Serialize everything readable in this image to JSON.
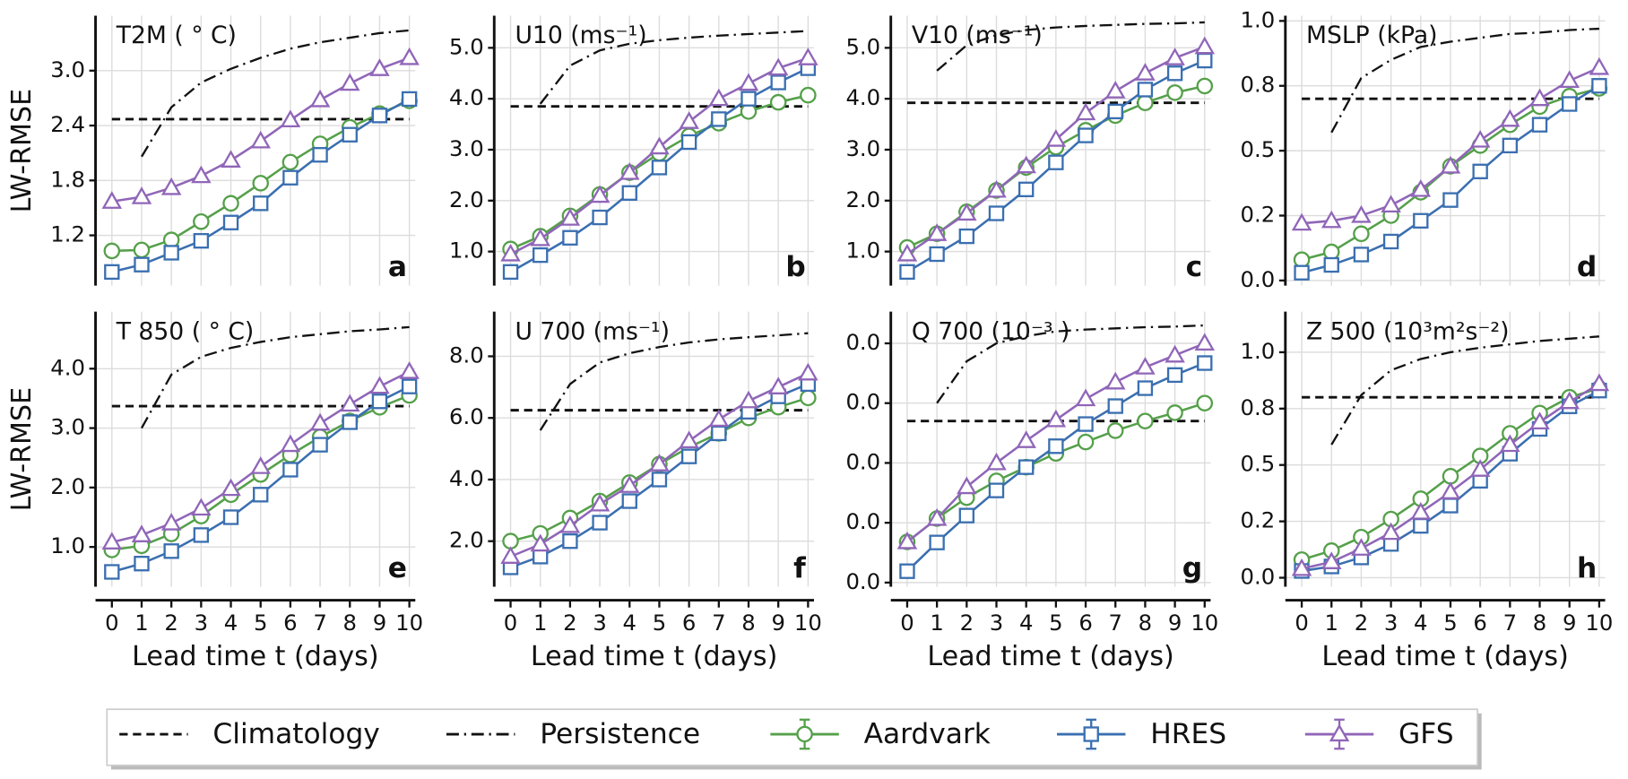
{
  "legend": {
    "position": "bottom",
    "entries": [
      {
        "name": "Climatology",
        "color": "#111111",
        "dash": "8,5"
      },
      {
        "name": "Persistence",
        "color": "#111111",
        "dash": "12,5,2,5"
      },
      {
        "name": "Aardvark",
        "color": "#55a04a",
        "marker": "circle"
      },
      {
        "name": "HRES",
        "color": "#3a6fb0",
        "marker": "square"
      },
      {
        "name": "GFS",
        "color": "#9066b8",
        "marker": "triangle"
      }
    ]
  },
  "chart_data": [
    {
      "type": "line",
      "title": "T2M ( ° C)",
      "panel_label": "a",
      "ylabel": "LW-RMSE",
      "grid": true,
      "x": [
        0,
        1,
        2,
        3,
        4,
        5,
        6,
        7,
        8,
        9,
        10
      ],
      "xlim": [
        -0.55,
        10.2
      ],
      "ylim": [
        0.65,
        3.6
      ],
      "yticks": [
        1.2,
        1.8,
        2.4,
        {
          "value": 3.0,
          "label": "3.0"
        }
      ],
      "series": [
        {
          "value": 2.47
        },
        {
          "values": [
            null,
            2.06,
            2.6,
            2.87,
            3.02,
            3.14,
            3.24,
            3.31,
            3.36,
            3.41,
            3.44
          ]
        },
        {
          "values": [
            1.03,
            1.04,
            1.15,
            1.35,
            1.55,
            1.77,
            2.0,
            2.2,
            2.38,
            2.53,
            2.67
          ]
        },
        {
          "values": [
            0.8,
            0.88,
            1.01,
            1.14,
            1.34,
            1.55,
            1.83,
            2.08,
            2.3,
            2.51,
            2.69
          ]
        },
        {
          "values": [
            1.57,
            1.62,
            1.72,
            1.85,
            2.02,
            2.23,
            2.46,
            2.68,
            2.86,
            3.02,
            3.14
          ]
        }
      ]
    },
    {
      "type": "line",
      "title": "U10 (ms⁻¹)",
      "panel_label": "b",
      "grid": true,
      "x": [
        0,
        1,
        2,
        3,
        4,
        5,
        6,
        7,
        8,
        9,
        10
      ],
      "xlim": [
        -0.55,
        10.2
      ],
      "ylim": [
        0.33,
        5.63
      ],
      "yticks": [
        {
          "value": 1,
          "label": "1.0"
        },
        {
          "value": 2,
          "label": "2.0"
        },
        {
          "value": 3,
          "label": "3.0"
        },
        {
          "value": 4,
          "label": "4.0"
        },
        {
          "value": 5,
          "label": "5.0"
        }
      ],
      "series": [
        {
          "value": 3.85
        },
        {
          "values": [
            null,
            3.9,
            4.65,
            4.95,
            5.08,
            5.15,
            5.2,
            5.24,
            5.27,
            5.3,
            5.33
          ]
        },
        {
          "values": [
            1.05,
            1.3,
            1.7,
            2.12,
            2.55,
            2.93,
            3.27,
            3.52,
            3.75,
            3.93,
            4.07
          ]
        },
        {
          "values": [
            0.6,
            0.93,
            1.27,
            1.67,
            2.15,
            2.65,
            3.15,
            3.6,
            4.0,
            4.32,
            4.6
          ]
        },
        {
          "values": [
            0.95,
            1.25,
            1.65,
            2.1,
            2.55,
            3.05,
            3.55,
            4.0,
            4.3,
            4.6,
            4.8
          ]
        }
      ]
    },
    {
      "type": "line",
      "title": "V10 (ms⁻¹)",
      "panel_label": "c",
      "grid": true,
      "x": [
        0,
        1,
        2,
        3,
        4,
        5,
        6,
        7,
        8,
        9,
        10
      ],
      "xlim": [
        -0.55,
        10.2
      ],
      "ylim": [
        0.33,
        5.63
      ],
      "yticks": [
        {
          "value": 1,
          "label": "1.0"
        },
        {
          "value": 2,
          "label": "2.0"
        },
        {
          "value": 3,
          "label": "3.0"
        },
        {
          "value": 4,
          "label": "4.0"
        },
        {
          "value": 5,
          "label": "5.0"
        }
      ],
      "series": [
        {
          "value": 3.92
        },
        {
          "values": [
            null,
            4.55,
            5.05,
            5.25,
            5.35,
            5.4,
            5.43,
            5.45,
            5.47,
            5.48,
            5.5
          ]
        },
        {
          "values": [
            1.08,
            1.35,
            1.78,
            2.2,
            2.65,
            3.05,
            3.38,
            3.67,
            3.92,
            4.12,
            4.25
          ]
        },
        {
          "values": [
            0.6,
            0.95,
            1.3,
            1.75,
            2.22,
            2.75,
            3.28,
            3.75,
            4.18,
            4.5,
            4.75
          ]
        },
        {
          "values": [
            0.95,
            1.35,
            1.75,
            2.2,
            2.68,
            3.2,
            3.72,
            4.15,
            4.5,
            4.8,
            5.02
          ]
        }
      ]
    },
    {
      "type": "line",
      "title": "MSLP (kPa)",
      "panel_label": "d",
      "grid": true,
      "x": [
        0,
        1,
        2,
        3,
        4,
        5,
        6,
        7,
        8,
        9,
        10
      ],
      "xlim": [
        -0.55,
        10.2
      ],
      "ylim": [
        -0.02,
        1.02
      ],
      "yticks": [
        {
          "value": 0,
          "label": "0.0"
        },
        {
          "value": 0.25,
          "label": "0.2"
        },
        0.5,
        {
          "value": 0.75,
          "label": "0.8"
        },
        {
          "value": 1,
          "label": "1.0"
        }
      ],
      "series": [
        {
          "value": 0.7
        },
        {
          "values": [
            null,
            0.57,
            0.78,
            0.85,
            0.9,
            0.92,
            0.935,
            0.95,
            0.955,
            0.965,
            0.97
          ]
        },
        {
          "values": [
            0.08,
            0.11,
            0.18,
            0.25,
            0.34,
            0.44,
            0.52,
            0.6,
            0.67,
            0.71,
            0.74
          ]
        },
        {
          "values": [
            0.03,
            0.06,
            0.1,
            0.15,
            0.23,
            0.31,
            0.42,
            0.52,
            0.6,
            0.68,
            0.75
          ]
        },
        {
          "values": [
            0.22,
            0.23,
            0.25,
            0.29,
            0.35,
            0.44,
            0.54,
            0.62,
            0.7,
            0.77,
            0.82
          ]
        }
      ]
    },
    {
      "type": "line",
      "title": "T 850 ( ° C)",
      "panel_label": "e",
      "ylabel": "LW-RMSE",
      "xlabel": "Lead time t (days)",
      "grid": true,
      "x": [
        0,
        1,
        2,
        3,
        4,
        5,
        6,
        7,
        8,
        9,
        10
      ],
      "xlim": [
        -0.55,
        10.2
      ],
      "ylim": [
        0.33,
        4.96
      ],
      "xticks": [
        0,
        1,
        2,
        3,
        4,
        5,
        6,
        7,
        8,
        9,
        10
      ],
      "yticks": [
        {
          "value": 1,
          "label": "1.0"
        },
        {
          "value": 2,
          "label": "2.0"
        },
        {
          "value": 3,
          "label": "3.0"
        },
        {
          "value": 4,
          "label": "4.0"
        }
      ],
      "series": [
        {
          "value": 3.37
        },
        {
          "values": [
            null,
            3.0,
            3.9,
            4.2,
            4.35,
            4.45,
            4.53,
            4.58,
            4.63,
            4.66,
            4.7
          ]
        },
        {
          "values": [
            0.95,
            1.02,
            1.22,
            1.52,
            1.88,
            2.22,
            2.55,
            2.85,
            3.12,
            3.35,
            3.55
          ]
        },
        {
          "values": [
            0.58,
            0.72,
            0.93,
            1.2,
            1.5,
            1.88,
            2.3,
            2.72,
            3.1,
            3.45,
            3.7
          ]
        },
        {
          "values": [
            1.08,
            1.2,
            1.4,
            1.65,
            1.98,
            2.35,
            2.72,
            3.08,
            3.4,
            3.7,
            3.95
          ]
        }
      ]
    },
    {
      "type": "line",
      "title": "U 700 (ms⁻¹)",
      "panel_label": "f",
      "xlabel": "Lead time t (days)",
      "grid": true,
      "x": [
        0,
        1,
        2,
        3,
        4,
        5,
        6,
        7,
        8,
        9,
        10
      ],
      "xlim": [
        -0.55,
        10.2
      ],
      "ylim": [
        0.52,
        9.45
      ],
      "xticks": [
        0,
        1,
        2,
        3,
        4,
        5,
        6,
        7,
        8,
        9,
        10
      ],
      "yticks": [
        {
          "value": 2,
          "label": "2.0"
        },
        {
          "value": 4,
          "label": "4.0"
        },
        {
          "value": 6,
          "label": "6.0"
        },
        {
          "value": 8,
          "label": "8.0"
        }
      ],
      "series": [
        {
          "value": 6.25
        },
        {
          "values": [
            null,
            5.6,
            7.1,
            7.8,
            8.1,
            8.3,
            8.45,
            8.55,
            8.62,
            8.68,
            8.75
          ]
        },
        {
          "values": [
            2.0,
            2.25,
            2.75,
            3.3,
            3.9,
            4.5,
            5.05,
            5.5,
            6.0,
            6.35,
            6.65
          ]
        },
        {
          "values": [
            1.15,
            1.5,
            2.0,
            2.6,
            3.3,
            4.0,
            4.75,
            5.5,
            6.2,
            6.7,
            7.1
          ]
        },
        {
          "values": [
            1.5,
            1.9,
            2.5,
            3.2,
            3.8,
            4.5,
            5.25,
            5.95,
            6.55,
            7.0,
            7.45
          ]
        }
      ]
    },
    {
      "type": "line",
      "title": "Q 700 (10⁻³ )",
      "panel_label": "g",
      "xlabel": "Lead time t (days)",
      "grid": true,
      "x": [
        0,
        1,
        2,
        3,
        4,
        5,
        6,
        7,
        8,
        9,
        10
      ],
      "xlim": [
        -0.55,
        10.2
      ],
      "ylim": [
        -0.0007,
        0.0453
      ],
      "xticks": [
        0,
        1,
        2,
        3,
        4,
        5,
        6,
        7,
        8,
        9,
        10
      ],
      "yticks": [
        {
          "value": 0,
          "label": "0.0"
        },
        {
          "value": 0.01,
          "label": "0.0"
        },
        {
          "value": 0.02,
          "label": "0.0"
        },
        {
          "value": 0.03,
          "label": "0.0"
        },
        {
          "value": 0.04,
          "label": "0.0"
        }
      ],
      "series": [
        {
          "value": 0.027
        },
        {
          "values": [
            null,
            0.03,
            0.037,
            0.04,
            0.0412,
            0.042,
            0.0423,
            0.0425,
            0.0427,
            0.0428,
            0.043
          ]
        },
        {
          "values": [
            0.0068,
            0.0107,
            0.0142,
            0.017,
            0.0193,
            0.0216,
            0.0235,
            0.0254,
            0.027,
            0.0284,
            0.03
          ]
        },
        {
          "values": [
            0.0019,
            0.0067,
            0.0112,
            0.0154,
            0.0193,
            0.0228,
            0.0265,
            0.0295,
            0.0325,
            0.0347,
            0.0367
          ]
        },
        {
          "values": [
            0.0068,
            0.0107,
            0.016,
            0.02,
            0.0237,
            0.0272,
            0.0307,
            0.0335,
            0.036,
            0.038,
            0.04
          ]
        }
      ]
    },
    {
      "type": "line",
      "title": "Z 500 (10³m²s⁻²)",
      "panel_label": "h",
      "xlabel": "Lead time t (days)",
      "grid": true,
      "x": [
        0,
        1,
        2,
        3,
        4,
        5,
        6,
        7,
        8,
        9,
        10
      ],
      "xlim": [
        -0.55,
        10.2
      ],
      "ylim": [
        -0.04,
        1.18
      ],
      "xticks": [
        0,
        1,
        2,
        3,
        4,
        5,
        6,
        7,
        8,
        9,
        10
      ],
      "yticks": [
        {
          "value": 0,
          "label": "0.0"
        },
        {
          "value": 0.25,
          "label": "0.2"
        },
        0.5,
        {
          "value": 0.75,
          "label": "0.8"
        },
        {
          "value": 1,
          "label": "1.0"
        }
      ],
      "series": [
        {
          "value": 0.8
        },
        {
          "values": [
            null,
            0.59,
            0.81,
            0.92,
            0.97,
            1.0,
            1.02,
            1.035,
            1.05,
            1.06,
            1.07
          ]
        },
        {
          "values": [
            0.08,
            0.12,
            0.18,
            0.26,
            0.35,
            0.45,
            0.54,
            0.64,
            0.73,
            0.8,
            0.84
          ]
        },
        {
          "values": [
            0.03,
            0.05,
            0.09,
            0.15,
            0.23,
            0.32,
            0.43,
            0.55,
            0.66,
            0.76,
            0.83
          ]
        },
        {
          "values": [
            0.04,
            0.07,
            0.13,
            0.2,
            0.29,
            0.38,
            0.48,
            0.59,
            0.69,
            0.78,
            0.86
          ]
        }
      ]
    }
  ]
}
